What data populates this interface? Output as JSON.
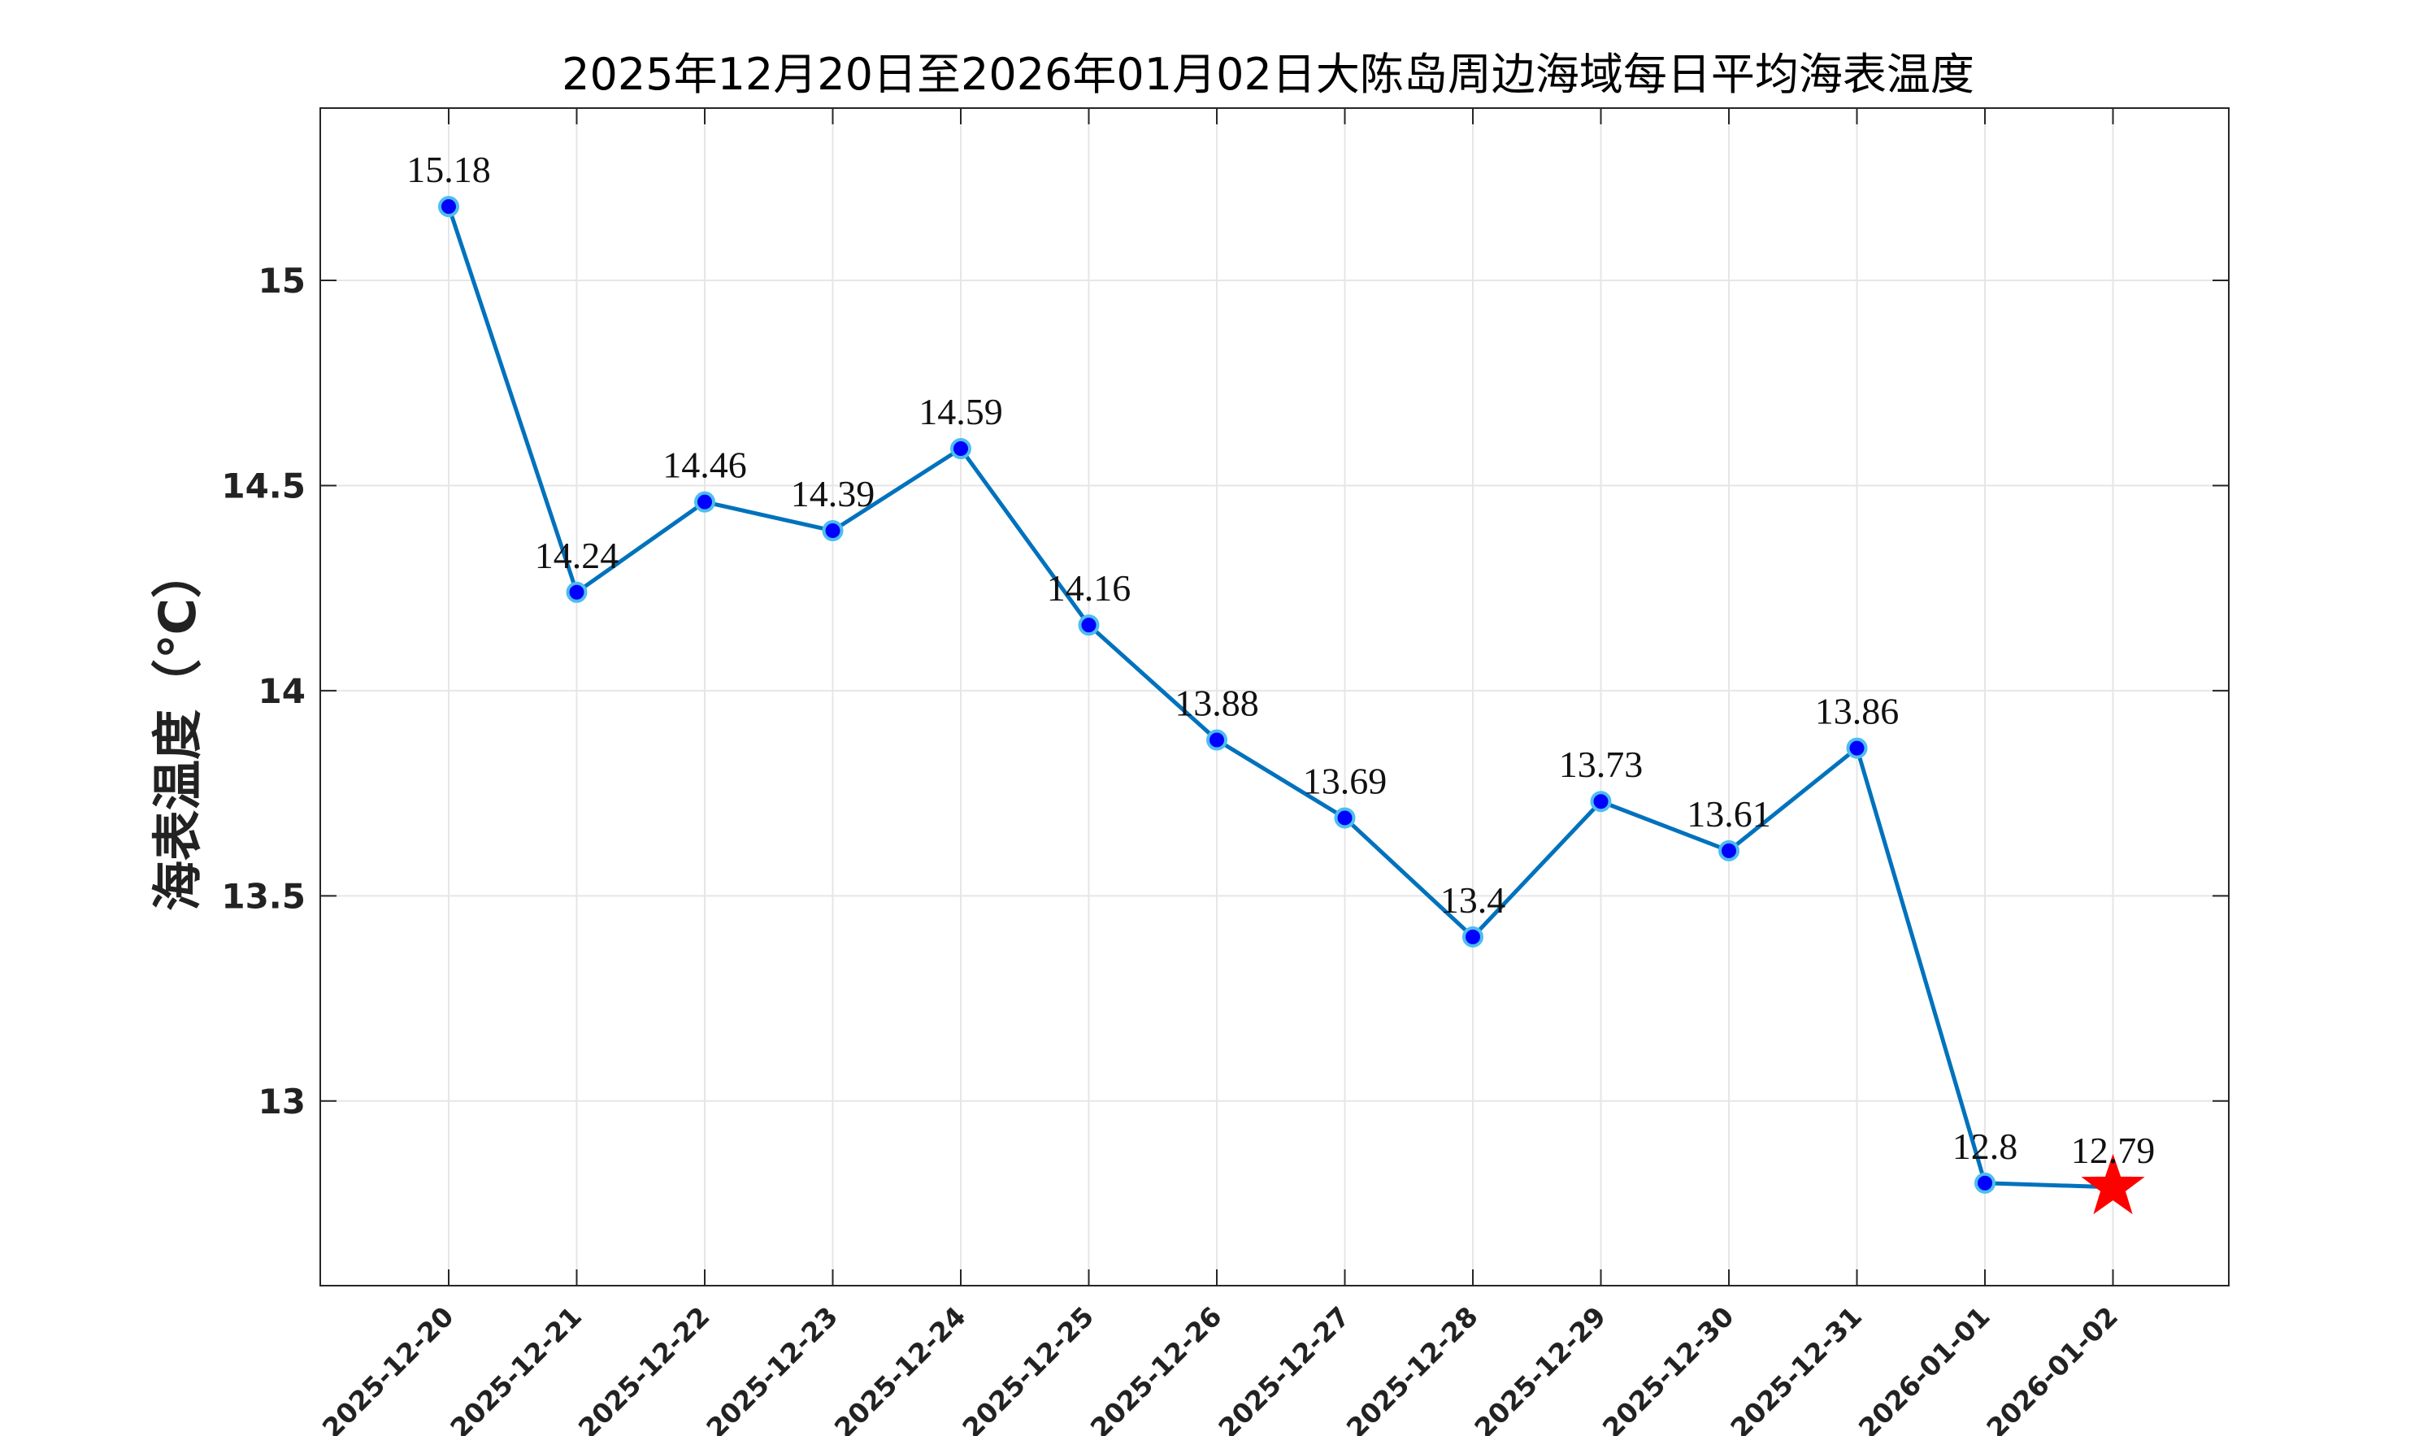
{
  "chart_data": {
    "type": "line",
    "title": "2025年12月20日至2026年01月02日大陈岛周边海域每日平均海表温度",
    "xlabel": "",
    "ylabel": "海表温度（℃）",
    "categories": [
      "2025-12-20",
      "2025-12-21",
      "2025-12-22",
      "2025-12-23",
      "2025-12-24",
      "2025-12-25",
      "2025-12-26",
      "2025-12-27",
      "2025-12-28",
      "2025-12-29",
      "2025-12-30",
      "2025-12-31",
      "2026-01-01",
      "2026-01-02"
    ],
    "values": [
      15.18,
      14.24,
      14.46,
      14.39,
      14.59,
      14.16,
      13.88,
      13.69,
      13.4,
      13.73,
      13.61,
      13.86,
      12.8,
      12.79
    ],
    "data_labels": [
      "15.18",
      "14.24",
      "14.46",
      "14.39",
      "14.59",
      "14.16",
      "13.88",
      "13.69",
      "13.4",
      "13.73",
      "13.61",
      "13.86",
      "12.8",
      "12.79"
    ],
    "ylim": [
      12.55,
      15.42
    ],
    "yticks": [
      13,
      13.5,
      14,
      14.5,
      15
    ],
    "ytick_labels": [
      "13",
      "13.5",
      "14",
      "14.5",
      "15"
    ],
    "grid": true,
    "legend": "none",
    "colors": {
      "line": "#0072BD",
      "marker_fill": "#0000FF",
      "marker_edge": "#4DBEEE",
      "last_marker": "#FF0000",
      "grid": "#E6E6E6",
      "axis": "#262626"
    },
    "last_point_marker": "star"
  }
}
